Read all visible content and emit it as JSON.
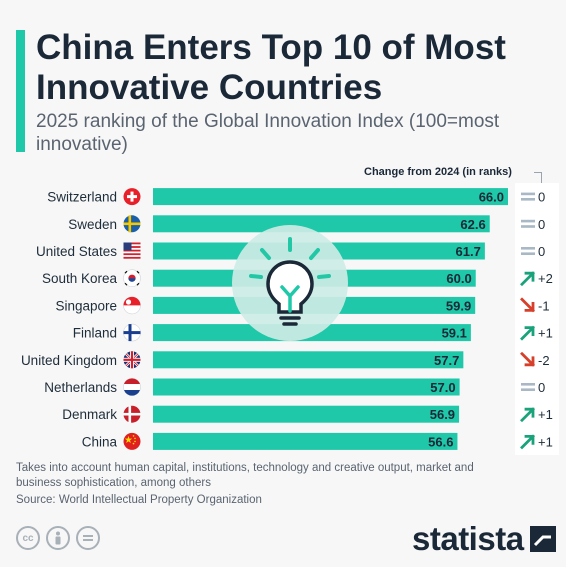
{
  "header": {
    "title": "China Enters Top 10 of Most Innovative Countries",
    "subtitle": "2025 ranking of the Global Innovation Index (100=most innovative)"
  },
  "change_header": "Change from 2024 (in ranks)",
  "chart_data": {
    "type": "bar",
    "orientation": "horizontal",
    "categories": [
      "Switzerland",
      "Sweden",
      "United States",
      "South Korea",
      "Singapore",
      "Finland",
      "United Kingdom",
      "Netherlands",
      "Denmark",
      "China"
    ],
    "values": [
      66.0,
      62.6,
      61.7,
      60.0,
      59.9,
      59.1,
      57.7,
      57.0,
      56.9,
      56.6
    ],
    "value_labels": [
      "66.0",
      "62.6",
      "61.7",
      "60.0",
      "59.9",
      "59.1",
      "57.7",
      "57.0",
      "56.9",
      "56.6"
    ],
    "change_labels": [
      "0",
      "0",
      "0",
      "+2",
      "-1",
      "+1",
      "-2",
      "0",
      "+1",
      "+1"
    ],
    "change_direction": [
      "same",
      "same",
      "same",
      "up",
      "down",
      "up",
      "down",
      "same",
      "up",
      "up"
    ],
    "xlim": [
      0,
      66.0
    ],
    "bar_color": "#1ec8a8",
    "up_color": "#1aa37a",
    "down_color": "#d6402a",
    "same_color": "#a8b8c4",
    "grid": false,
    "legend": "none"
  },
  "footer": {
    "note": "Takes into account human capital, institutions, technology and creative output, market and business sophistication, among others",
    "source": "Source: World Intellectual Property Organization",
    "brand": "statista"
  }
}
